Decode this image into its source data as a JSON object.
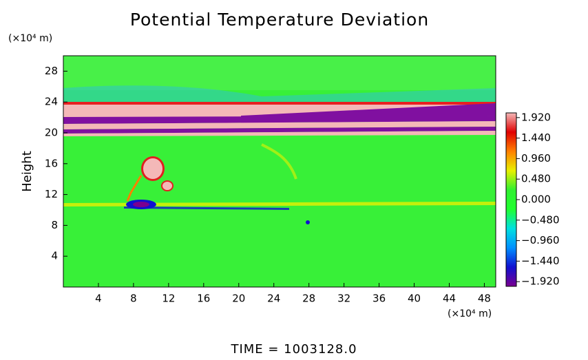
{
  "chart_data": {
    "type": "heatmap",
    "title": "Potential Temperature Deviation",
    "y_label": "Height",
    "y_unit": "(×10⁴ m)",
    "x_unit": "(×10⁴ m)",
    "footer": "TIME  =  1003128.0",
    "xlim": [
      0,
      49.3
    ],
    "xticks": [
      4,
      8,
      12,
      16,
      20,
      24,
      28,
      32,
      36,
      40,
      44,
      48
    ],
    "ylim": [
      0,
      30
    ],
    "yticks": [
      4,
      8,
      12,
      16,
      20,
      24,
      28
    ],
    "clim": [
      -2.03,
      2.03
    ],
    "cticks": [
      {
        "value": 1.92,
        "label": "1.920"
      },
      {
        "value": 1.44,
        "label": "1.440"
      },
      {
        "value": 0.96,
        "label": "0.960"
      },
      {
        "value": 0.48,
        "label": "0.480"
      },
      {
        "value": 0,
        "label": "0.000"
      },
      {
        "value": -0.48,
        "label": "−0.480"
      },
      {
        "value": -0.96,
        "label": "−0.960"
      },
      {
        "value": -1.44,
        "label": "−1.440"
      },
      {
        "value": -1.92,
        "label": "−1.920"
      }
    ],
    "colormap": [
      "#7a0090",
      "#1010d0",
      "#0090ff",
      "#00e0e0",
      "#20ff30",
      "#30f030",
      "#e8f000",
      "#ff8000",
      "#e00000",
      "#f4b8b8"
    ]
  }
}
